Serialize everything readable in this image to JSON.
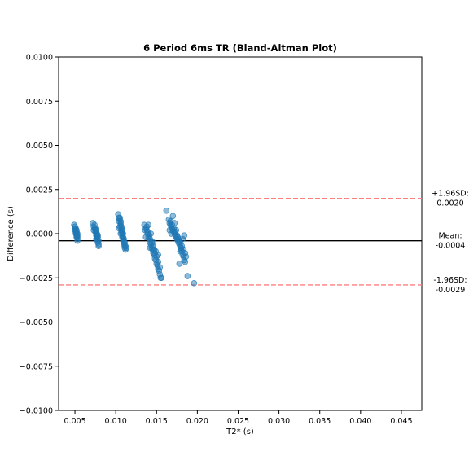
{
  "chart_data": {
    "type": "scatter",
    "title": "6 Period 6ms TR (Bland-Altman Plot)",
    "xlabel": "T2* (s)",
    "ylabel": "Difference (s)",
    "xlim": [
      0.003,
      0.0475
    ],
    "ylim": [
      -0.01,
      0.01
    ],
    "xticks": [
      0.005,
      0.01,
      0.015,
      0.02,
      0.025,
      0.03,
      0.035,
      0.04,
      0.045
    ],
    "xtick_labels": [
      "0.005",
      "0.010",
      "0.015",
      "0.020",
      "0.025",
      "0.030",
      "0.035",
      "0.040",
      "0.045"
    ],
    "yticks": [
      -0.01,
      -0.0075,
      -0.005,
      -0.0025,
      0.0,
      0.0025,
      0.005,
      0.0075,
      0.01
    ],
    "ytick_labels": [
      "−0.0100",
      "−0.0075",
      "−0.0050",
      "−0.0025",
      "0.0000",
      "0.0025",
      "0.0050",
      "0.0075",
      "0.0100"
    ],
    "grid": false,
    "colors": {
      "points": "#1f77b4",
      "mean_line": "#000000",
      "limit_lines": "#ff7f7f"
    },
    "mean": -0.0004,
    "upper_loa": 0.002,
    "lower_loa": -0.0029,
    "annotations": {
      "upper_label": "+1.96SD:",
      "upper_value": "0.0020",
      "mean_label": "Mean:",
      "mean_value": "-0.0004",
      "lower_label": "-1.96SD:",
      "lower_value": "-0.0029"
    },
    "points": [
      [
        0.0049,
        0.0005
      ],
      [
        0.005,
        0.0003
      ],
      [
        0.0051,
        0.0002
      ],
      [
        0.0051,
        0.0001
      ],
      [
        0.0052,
        0.0
      ],
      [
        0.0052,
        -0.0001
      ],
      [
        0.0053,
        -0.0002
      ],
      [
        0.0053,
        -0.0003
      ],
      [
        0.005,
        0.0002
      ],
      [
        0.0051,
        0.0
      ],
      [
        0.0052,
        -0.0002
      ],
      [
        0.005,
        0.0004
      ],
      [
        0.0051,
        0.0003
      ],
      [
        0.0052,
        0.0001
      ],
      [
        0.0053,
        -0.0001
      ],
      [
        0.0053,
        -0.0004
      ],
      [
        0.0052,
        0.0002
      ],
      [
        0.0053,
        0.0
      ],
      [
        0.0072,
        0.0006
      ],
      [
        0.0073,
        0.0004
      ],
      [
        0.0074,
        0.0003
      ],
      [
        0.0075,
        0.0002
      ],
      [
        0.0075,
        0.0001
      ],
      [
        0.0076,
        0.0
      ],
      [
        0.0076,
        -0.0001
      ],
      [
        0.0077,
        -0.0002
      ],
      [
        0.0077,
        -0.0003
      ],
      [
        0.0078,
        -0.0004
      ],
      [
        0.0078,
        -0.0005
      ],
      [
        0.0079,
        -0.0006
      ],
      [
        0.0074,
        0.0005
      ],
      [
        0.0075,
        0.0003
      ],
      [
        0.0076,
        0.0002
      ],
      [
        0.0077,
        0.0
      ],
      [
        0.0077,
        -0.0001
      ],
      [
        0.0078,
        -0.0002
      ],
      [
        0.0079,
        -0.0004
      ],
      [
        0.0073,
        0.0002
      ],
      [
        0.0076,
        -0.0003
      ],
      [
        0.0078,
        -0.0001
      ],
      [
        0.0079,
        -0.0007
      ],
      [
        0.0103,
        0.0011
      ],
      [
        0.0104,
        0.0009
      ],
      [
        0.0105,
        0.0008
      ],
      [
        0.0106,
        0.0006
      ],
      [
        0.0106,
        0.0005
      ],
      [
        0.0107,
        0.0003
      ],
      [
        0.0107,
        0.0002
      ],
      [
        0.0108,
        0.0
      ],
      [
        0.0108,
        -0.0001
      ],
      [
        0.0109,
        -0.0003
      ],
      [
        0.0109,
        -0.0004
      ],
      [
        0.011,
        -0.0005
      ],
      [
        0.011,
        -0.0006
      ],
      [
        0.0111,
        -0.0007
      ],
      [
        0.0111,
        -0.0008
      ],
      [
        0.0112,
        -0.0009
      ],
      [
        0.0105,
        0.0009
      ],
      [
        0.0106,
        0.0007
      ],
      [
        0.0107,
        0.0004
      ],
      [
        0.0108,
        0.0002
      ],
      [
        0.0109,
        0.0
      ],
      [
        0.0109,
        -0.0002
      ],
      [
        0.011,
        -0.0003
      ],
      [
        0.0111,
        -0.0005
      ],
      [
        0.0112,
        -0.0007
      ],
      [
        0.0113,
        -0.0008
      ],
      [
        0.0104,
        0.0007
      ],
      [
        0.0105,
        0.0004
      ],
      [
        0.0107,
        0.0001
      ],
      [
        0.0108,
        -0.0002
      ],
      [
        0.0106,
        0.0
      ],
      [
        0.0104,
        0.0003
      ],
      [
        0.0135,
        0.0005
      ],
      [
        0.0137,
        0.0003
      ],
      [
        0.0138,
        0.0002
      ],
      [
        0.0139,
        0.0
      ],
      [
        0.014,
        -0.0002
      ],
      [
        0.0141,
        -0.0003
      ],
      [
        0.0142,
        -0.0005
      ],
      [
        0.0143,
        -0.0006
      ],
      [
        0.0144,
        -0.0008
      ],
      [
        0.0145,
        -0.0009
      ],
      [
        0.0146,
        -0.0011
      ],
      [
        0.0147,
        -0.0012
      ],
      [
        0.0148,
        -0.0014
      ],
      [
        0.0149,
        -0.0015
      ],
      [
        0.015,
        -0.0017
      ],
      [
        0.0151,
        -0.0018
      ],
      [
        0.0152,
        -0.002
      ],
      [
        0.0153,
        -0.0021
      ],
      [
        0.0154,
        -0.0023
      ],
      [
        0.0155,
        -0.0025
      ],
      [
        0.0138,
        0.0004
      ],
      [
        0.0139,
        0.0001
      ],
      [
        0.0141,
        -0.0001
      ],
      [
        0.0142,
        -0.0003
      ],
      [
        0.0144,
        -0.0005
      ],
      [
        0.0145,
        -0.0007
      ],
      [
        0.0147,
        -0.0009
      ],
      [
        0.0148,
        -0.0011
      ],
      [
        0.015,
        -0.0013
      ],
      [
        0.0152,
        -0.0016
      ],
      [
        0.0154,
        -0.0019
      ],
      [
        0.014,
        0.0005
      ],
      [
        0.0143,
        0.0
      ],
      [
        0.0146,
        -0.0005
      ],
      [
        0.0149,
        -0.001
      ],
      [
        0.0137,
        -0.0002
      ],
      [
        0.0142,
        -0.0008
      ],
      [
        0.0136,
        0.0002
      ],
      [
        0.0152,
        -0.0012
      ],
      [
        0.0156,
        -0.0025
      ],
      [
        0.0162,
        0.0013
      ],
      [
        0.0165,
        0.0008
      ],
      [
        0.0166,
        0.0006
      ],
      [
        0.0167,
        0.0005
      ],
      [
        0.0168,
        0.0004
      ],
      [
        0.0169,
        0.0003
      ],
      [
        0.017,
        0.0002
      ],
      [
        0.0171,
        0.0001
      ],
      [
        0.0172,
        0.0
      ],
      [
        0.0173,
        -0.0001
      ],
      [
        0.0174,
        -0.0002
      ],
      [
        0.0175,
        -0.0003
      ],
      [
        0.0176,
        -0.0004
      ],
      [
        0.0177,
        -0.0005
      ],
      [
        0.0178,
        -0.0006
      ],
      [
        0.0179,
        -0.0007
      ],
      [
        0.018,
        -0.0009
      ],
      [
        0.0181,
        -0.001
      ],
      [
        0.0182,
        -0.0012
      ],
      [
        0.0183,
        -0.0013
      ],
      [
        0.0184,
        -0.0015
      ],
      [
        0.0185,
        -0.0016
      ],
      [
        0.0167,
        0.0007
      ],
      [
        0.0169,
        0.0005
      ],
      [
        0.0171,
        0.0003
      ],
      [
        0.0173,
        0.0001
      ],
      [
        0.0175,
        -0.0001
      ],
      [
        0.0177,
        -0.0003
      ],
      [
        0.0179,
        -0.0005
      ],
      [
        0.0181,
        -0.0007
      ],
      [
        0.0183,
        -0.0009
      ],
      [
        0.0185,
        -0.0011
      ],
      [
        0.017,
        0.001
      ],
      [
        0.0172,
        0.0006
      ],
      [
        0.0174,
        0.0002
      ],
      [
        0.0176,
        -0.0002
      ],
      [
        0.0178,
        -0.0004
      ],
      [
        0.018,
        -0.0008
      ],
      [
        0.0182,
        -0.0003
      ],
      [
        0.0184,
        -0.0001
      ],
      [
        0.0186,
        -0.0013
      ],
      [
        0.0168,
        0.0
      ],
      [
        0.0166,
        0.0002
      ],
      [
        0.0179,
        -0.001
      ],
      [
        0.0178,
        -0.0017
      ],
      [
        0.0188,
        -0.0024
      ],
      [
        0.0196,
        -0.0028
      ]
    ]
  }
}
